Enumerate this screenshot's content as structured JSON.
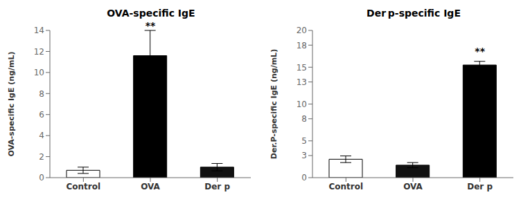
{
  "chart_data": [
    {
      "type": "bar",
      "title": "OVA-specific IgE",
      "ylabel": "OVA-specific IgE (ng/mL)",
      "categories": [
        "Control",
        "OVA",
        "Der p"
      ],
      "values": [
        0.7,
        11.6,
        1.0
      ],
      "errors": [
        0.3,
        2.4,
        0.35
      ],
      "colors": [
        "#ffffff",
        "#000000",
        "#111111"
      ],
      "ylim": [
        0,
        14
      ],
      "yticks": [
        0,
        2,
        4,
        6,
        8,
        10,
        12,
        14
      ],
      "annotations": [
        {
          "text": "**",
          "x": "OVA",
          "y": 13.8
        }
      ],
      "grid": false
    },
    {
      "type": "bar",
      "title": "Der p-specific IgE",
      "ylabel": "Der.P-specific IgE (ng/mL)",
      "categories": [
        "Control",
        "OVA",
        "Der p"
      ],
      "values": [
        2.5,
        1.7,
        15.3
      ],
      "errors": [
        0.45,
        0.35,
        0.5
      ],
      "colors": [
        "#ffffff",
        "#111111",
        "#000000"
      ],
      "ylim": [
        0,
        20
      ],
      "yticks": [
        0,
        3,
        5,
        8,
        10,
        13,
        15,
        18,
        20
      ],
      "annotations": [
        {
          "text": "**",
          "x": "Der p",
          "y": 16.2
        }
      ],
      "grid": false
    }
  ]
}
